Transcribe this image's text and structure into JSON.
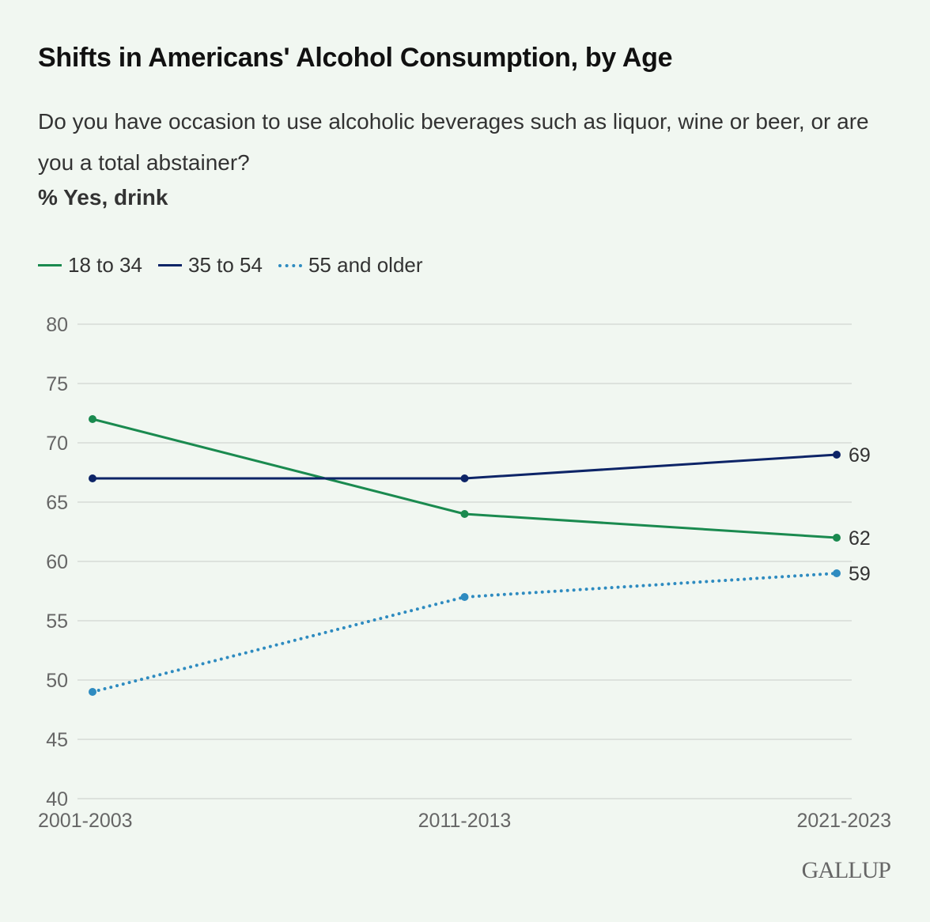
{
  "chart_data": {
    "type": "line",
    "title": "Shifts in Americans' Alcohol Consumption, by Age",
    "subtitle": "Do you have occasion to use alcoholic beverages such as liquor, wine or beer, or are you a total abstainer?",
    "ylabel": "% Yes, drink",
    "xlabel": "",
    "categories": [
      "2001-2003",
      "2011-2013",
      "2021-2023"
    ],
    "ylim": [
      40,
      80
    ],
    "yticks": [
      40,
      45,
      50,
      55,
      60,
      65,
      70,
      75,
      80
    ],
    "grid": true,
    "legend_position": "top-left",
    "series": [
      {
        "name": "18 to 34",
        "values": [
          72,
          64,
          62
        ],
        "color": "#1a8a4f",
        "style": "solid"
      },
      {
        "name": "35 to 54",
        "values": [
          67,
          67,
          69
        ],
        "color": "#0d2467",
        "style": "solid"
      },
      {
        "name": "55 and older",
        "values": [
          49,
          57,
          59
        ],
        "color": "#2e8bc0",
        "style": "dotted"
      }
    ],
    "end_labels": [
      "69",
      "62",
      "59"
    ]
  },
  "footer": {
    "logo": "GALLUP"
  }
}
